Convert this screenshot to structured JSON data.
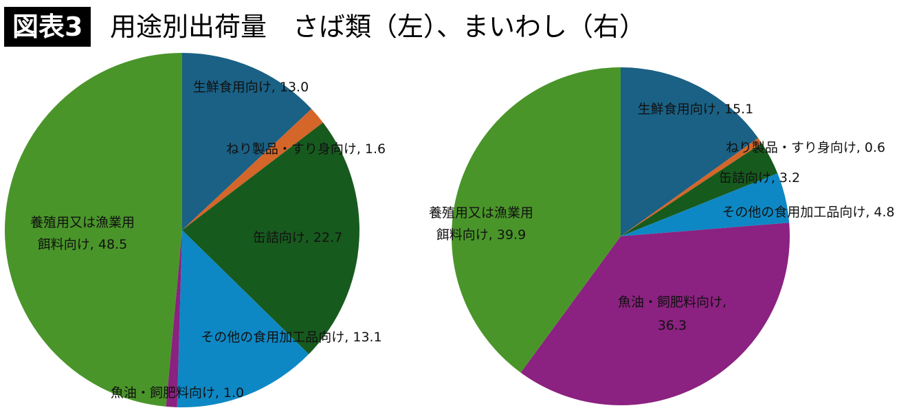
{
  "header": {
    "badge": "図表3",
    "title": "用途別出荷量　さば類（左）、まいわし（右）"
  },
  "colors": {
    "fresh": "#1A6185",
    "nerimono": "#D4662A",
    "canned": "#175A1E",
    "other_processed": "#0E88C4",
    "fish_oil": "#8B2180",
    "feed": "#4A952A",
    "badge_bg": "#000000",
    "badge_fg": "#ffffff"
  },
  "chart_data": [
    {
      "type": "pie",
      "title": "さば類（左）",
      "start": "12 o'clock",
      "direction": "clockwise",
      "slices": [
        {
          "key": "fresh",
          "label": [
            "生鮮食用向け, 13.0"
          ],
          "value": 13.0,
          "color": "#1A6185"
        },
        {
          "key": "nerimono",
          "label": [
            "ねり製品・すり身向け, 1.6"
          ],
          "value": 1.6,
          "color": "#D4662A"
        },
        {
          "key": "canned",
          "label": [
            "缶詰向け, 22.7"
          ],
          "value": 22.7,
          "color": "#175A1E"
        },
        {
          "key": "other_processed",
          "label": [
            "その他の食用加工品向け, 13.1"
          ],
          "value": 13.1,
          "color": "#0E88C4"
        },
        {
          "key": "fish_oil",
          "label": [
            "魚油・飼肥料向け, 1.0"
          ],
          "value": 1.0,
          "color": "#8B2180"
        },
        {
          "key": "feed",
          "label": [
            "養殖用又は漁業用",
            "餌料向け, 48.5"
          ],
          "value": 48.5,
          "color": "#4A952A"
        }
      ]
    },
    {
      "type": "pie",
      "title": "まいわし（右）",
      "start": "12 o'clock",
      "direction": "clockwise",
      "slices": [
        {
          "key": "fresh",
          "label": [
            "生鮮食用向け, 15.1"
          ],
          "value": 15.1,
          "color": "#1A6185"
        },
        {
          "key": "nerimono",
          "label": [
            "ねり製品・すり身向け, 0.6"
          ],
          "value": 0.6,
          "color": "#D4662A"
        },
        {
          "key": "canned",
          "label": [
            "缶詰向け, 3.2"
          ],
          "value": 3.2,
          "color": "#175A1E"
        },
        {
          "key": "other_processed",
          "label": [
            "その他の食用加工品向け, 4.8"
          ],
          "value": 4.8,
          "color": "#0E88C4"
        },
        {
          "key": "fish_oil",
          "label": [
            "魚油・飼肥料向け,",
            "36.3"
          ],
          "value": 36.3,
          "color": "#8B2180"
        },
        {
          "key": "feed",
          "label": [
            "養殖用又は漁業用",
            "餌料向け, 39.9"
          ],
          "value": 39.9,
          "color": "#4A952A"
        }
      ]
    }
  ]
}
